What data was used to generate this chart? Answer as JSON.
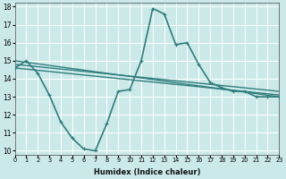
{
  "xlabel": "Humidex (Indice chaleur)",
  "ylabel": "",
  "bg_color": "#cce9e9",
  "grid_color": "#ffffff",
  "line_color": "#2e7d7d",
  "xlim": [
    0,
    23
  ],
  "ylim": [
    9.8,
    18.2
  ],
  "xticks": [
    0,
    1,
    2,
    3,
    4,
    5,
    6,
    7,
    8,
    9,
    10,
    11,
    12,
    13,
    14,
    15,
    16,
    17,
    18,
    19,
    20,
    21,
    22,
    23
  ],
  "yticks": [
    10,
    11,
    12,
    13,
    14,
    15,
    16,
    17,
    18
  ],
  "series": [
    {
      "x": [
        0,
        1,
        2,
        3,
        4,
        5,
        6,
        7,
        8,
        9,
        10,
        11,
        12,
        13,
        14,
        15,
        16,
        17,
        18,
        19,
        20,
        21,
        22,
        23
      ],
      "y": [
        14.6,
        15.0,
        14.3,
        13.1,
        11.6,
        10.7,
        10.1,
        10.0,
        11.5,
        13.3,
        13.4,
        15.0,
        17.9,
        17.6,
        15.9,
        16.0,
        14.8,
        13.8,
        13.5,
        13.3,
        13.3,
        13.0,
        13.0,
        13.0
      ],
      "marker": "+",
      "lw": 1.2,
      "ms": 3.5
    },
    {
      "x": [
        0,
        23
      ],
      "y": [
        15.0,
        13.0
      ],
      "marker": null,
      "lw": 1.0,
      "ms": 0
    },
    {
      "x": [
        0,
        23
      ],
      "y": [
        14.8,
        13.3
      ],
      "marker": null,
      "lw": 1.0,
      "ms": 0
    },
    {
      "x": [
        0,
        23
      ],
      "y": [
        14.6,
        13.1
      ],
      "marker": null,
      "lw": 1.0,
      "ms": 0
    }
  ]
}
